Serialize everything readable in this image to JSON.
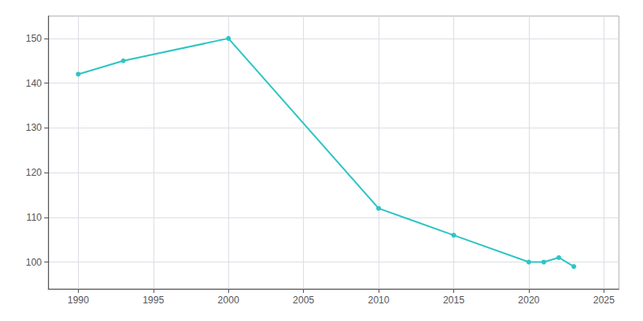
{
  "chart_data": {
    "type": "line",
    "x": [
      1990,
      1993,
      2000,
      2010,
      2015,
      2020,
      2021,
      2022,
      2023
    ],
    "values": [
      142,
      145,
      150,
      112,
      106,
      100,
      100,
      101,
      99
    ],
    "color": "#2ec4c4",
    "marker": "circle",
    "xlim": [
      1988,
      2026
    ],
    "xticks": [
      1990,
      1995,
      2000,
      2005,
      2010,
      2015,
      2020,
      2025
    ],
    "ylim": [
      94,
      155
    ],
    "yticks": [
      100,
      110,
      120,
      130,
      140,
      150
    ],
    "grid": true
  }
}
